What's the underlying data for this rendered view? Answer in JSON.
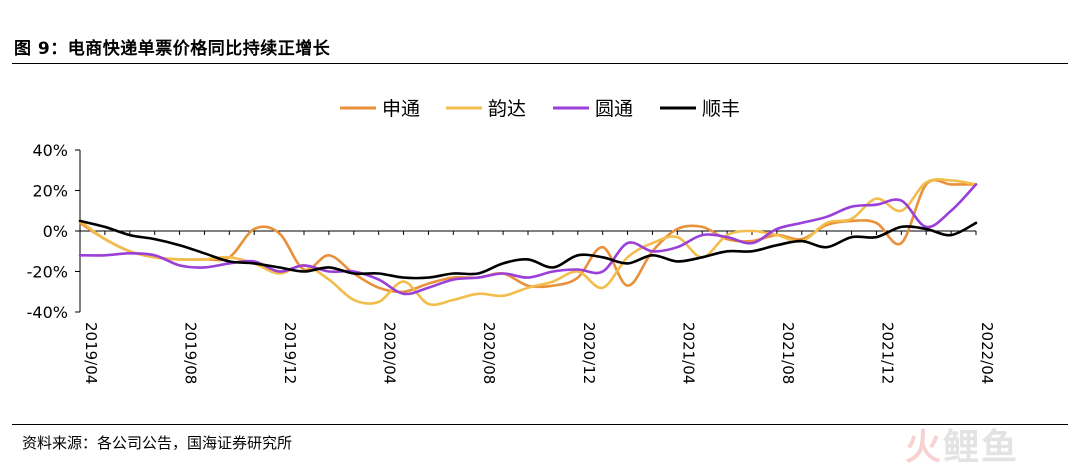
{
  "figure": {
    "title": "图 9：电商快递单票价格同比持续正增长",
    "source": "资料来源：各公司公告，国海证券研究所",
    "watermark_fire": "火",
    "watermark_rest": "鲤鱼"
  },
  "chart_data": {
    "type": "line",
    "title": "",
    "xlabel": "",
    "ylabel": "",
    "ylim": [
      -40,
      40
    ],
    "y_ticks": [
      -40,
      -20,
      0,
      20,
      40
    ],
    "y_tick_labels": [
      "-40%",
      "-20%",
      "0%",
      "20%",
      "40%"
    ],
    "x_tick_labels": [
      "2019/04",
      "2019/08",
      "2019/12",
      "2020/04",
      "2020/08",
      "2020/12",
      "2021/04",
      "2021/08",
      "2021/12",
      "2022/04"
    ],
    "legend_position": "top-center",
    "grid": false,
    "x": [
      "2019/04",
      "2019/05",
      "2019/06",
      "2019/07",
      "2019/08",
      "2019/09",
      "2019/10",
      "2019/11",
      "2019/12",
      "2020/01",
      "2020/02",
      "2020/03",
      "2020/04",
      "2020/05",
      "2020/06",
      "2020/07",
      "2020/08",
      "2020/09",
      "2020/10",
      "2020/11",
      "2020/12",
      "2021/01",
      "2021/02",
      "2021/03",
      "2021/04",
      "2021/05",
      "2021/06",
      "2021/07",
      "2021/08",
      "2021/09",
      "2021/10",
      "2021/11",
      "2021/12",
      "2022/01",
      "2022/02",
      "2022/03",
      "2022/04"
    ],
    "series": [
      {
        "name": "申通",
        "color": "#e8913a",
        "values": [
          4,
          -4,
          -10,
          -13,
          -14,
          -14,
          -13,
          1,
          -1,
          -19,
          -12,
          -21,
          -28,
          -30,
          -26,
          -23,
          -23,
          -21,
          -27,
          -27,
          -23,
          -8,
          -27,
          -10,
          1,
          2,
          -4,
          -5,
          -2,
          -4,
          3,
          5,
          4,
          -6,
          23,
          23,
          23
        ]
      },
      {
        "name": "韵达",
        "color": "#f2bd4a",
        "values": [
          5,
          -4,
          -10,
          -13,
          -14,
          -14,
          -13,
          -16,
          -21,
          -17,
          -24,
          -34,
          -35,
          -25,
          -36,
          -34,
          -31,
          -32,
          -28,
          -25,
          -20,
          -28,
          -13,
          -6,
          -3,
          -13,
          -2,
          0,
          -2,
          -5,
          4,
          6,
          16,
          10,
          24,
          25,
          23
        ]
      },
      {
        "name": "圆通",
        "color": "#9a3fd8",
        "values": [
          -12,
          -12,
          -11,
          -12,
          -17,
          -18,
          -16,
          -15,
          -20,
          -17,
          -20,
          -20,
          -24,
          -31,
          -28,
          -24,
          -23,
          -21,
          -23,
          -20,
          -19,
          -20,
          -6,
          -10,
          -8,
          -2,
          -3,
          -6,
          1,
          4,
          7,
          12,
          13,
          15,
          2,
          10,
          23
        ]
      },
      {
        "name": "顺丰",
        "color": "#000000",
        "values": [
          5,
          2,
          -2,
          -4,
          -7,
          -11,
          -15,
          -16,
          -18,
          -20,
          -18,
          -21,
          -21,
          -23,
          -23,
          -21,
          -21,
          -16,
          -14,
          -18,
          -12,
          -13,
          -16,
          -12,
          -15,
          -13,
          -10,
          -10,
          -7,
          -5,
          -8,
          -3,
          -3,
          2,
          1,
          -2,
          4
        ]
      }
    ]
  }
}
